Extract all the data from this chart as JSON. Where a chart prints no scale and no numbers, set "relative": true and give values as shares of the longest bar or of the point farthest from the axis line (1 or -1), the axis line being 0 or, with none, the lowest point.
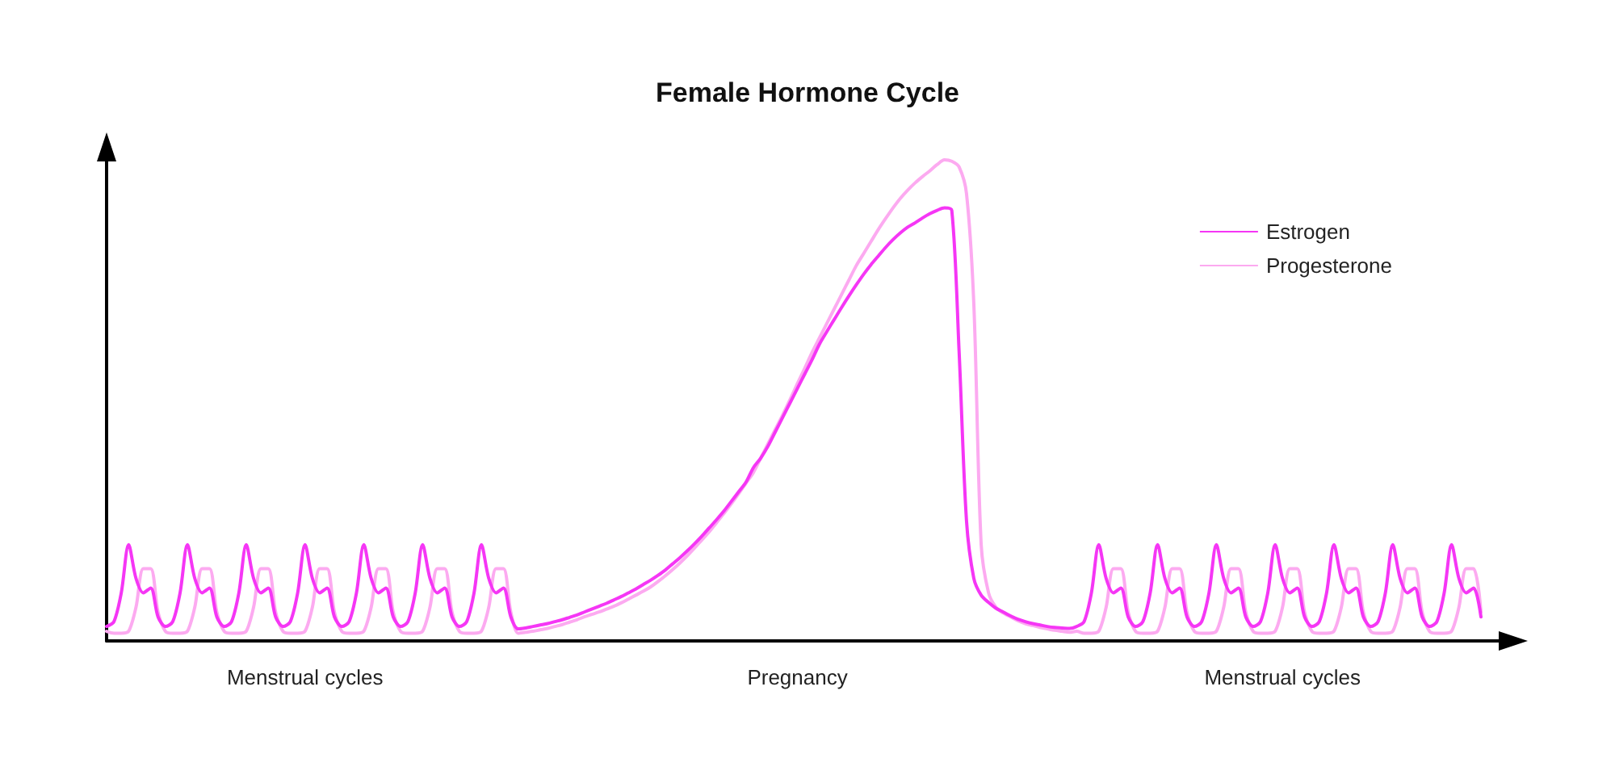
{
  "chart_data": {
    "type": "line",
    "title": "Female Hormone Cycle",
    "relative": true,
    "legend": "top right",
    "grid": false,
    "marker": "none",
    "line_style": "solid",
    "categories": [
      null,
      null,
      null,
      null,
      null,
      null,
      null,
      null,
      null,
      null,
      null,
      null,
      null,
      null,
      null,
      null,
      null,
      null,
      null,
      null,
      null,
      null,
      null,
      null,
      null,
      null,
      null,
      "Menstrual cycles",
      null,
      null,
      null,
      null,
      null,
      null,
      null,
      null,
      null,
      null,
      null,
      null,
      null,
      null,
      null,
      null,
      null,
      null,
      null,
      null,
      null,
      null,
      null,
      null,
      null,
      null,
      null,
      null,
      null,
      null,
      null,
      null,
      null,
      null,
      null,
      null,
      null,
      null,
      null,
      null,
      null,
      null,
      null,
      null,
      null,
      null,
      null,
      null,
      null,
      null,
      null,
      null,
      null,
      null,
      null,
      null,
      null,
      null,
      null,
      null,
      null,
      null,
      null,
      null,
      null,
      null,
      "Pregnancy",
      null,
      null,
      null,
      null,
      null,
      null,
      null,
      null,
      null,
      null,
      null,
      null,
      null,
      null,
      null,
      null,
      null,
      null,
      null,
      null,
      null,
      null,
      null,
      null,
      null,
      null,
      null,
      null,
      null,
      null,
      null,
      null,
      null,
      null,
      null,
      null,
      null,
      null,
      null,
      null,
      null,
      null,
      null,
      null,
      null,
      null,
      null,
      null,
      null,
      null,
      null,
      null,
      null,
      null,
      null,
      null,
      null,
      null,
      null,
      null,
      null,
      null,
      null,
      null,
      null,
      "Menstrual cycles",
      null,
      null,
      null,
      null,
      null,
      null,
      null,
      null,
      null,
      null,
      null,
      null,
      null,
      null,
      null,
      null,
      null,
      null,
      null,
      null,
      null,
      null,
      null,
      null,
      null,
      null,
      null
    ],
    "series": [
      {
        "name": "Estrogen",
        "color": "#f536f5",
        "values": [
          0.03,
          0.04,
          0.1,
          0.2,
          0.13,
          0.1,
          0.11,
          0.05,
          0.03,
          0.04,
          0.1,
          0.2,
          0.13,
          0.1,
          0.11,
          0.05,
          0.03,
          0.04,
          0.1,
          0.2,
          0.13,
          0.1,
          0.11,
          0.05,
          0.03,
          0.04,
          0.1,
          0.2,
          0.13,
          0.1,
          0.11,
          0.05,
          0.03,
          0.04,
          0.1,
          0.2,
          0.13,
          0.1,
          0.11,
          0.05,
          0.03,
          0.04,
          0.1,
          0.2,
          0.13,
          0.1,
          0.11,
          0.05,
          0.03,
          0.04,
          0.1,
          0.2,
          0.13,
          0.1,
          0.11,
          0.05,
          0.025,
          0.027,
          0.03,
          0.033,
          0.036,
          0.04,
          0.044,
          0.049,
          0.054,
          0.06,
          0.066,
          0.072,
          0.078,
          0.085,
          0.092,
          0.1,
          0.108,
          0.117,
          0.126,
          0.136,
          0.147,
          0.16,
          0.173,
          0.187,
          0.202,
          0.218,
          0.235,
          0.252,
          0.27,
          0.29,
          0.31,
          0.33,
          0.36,
          0.38,
          0.405,
          0.435,
          0.465,
          0.495,
          0.525,
          0.555,
          0.585,
          0.617,
          0.643,
          0.668,
          0.693,
          0.717,
          0.74,
          0.762,
          0.782,
          0.8,
          0.818,
          0.834,
          0.848,
          0.86,
          0.869,
          0.879,
          0.888,
          0.895,
          0.9,
          0.895,
          0.6,
          0.25,
          0.13,
          0.095,
          0.08,
          0.068,
          0.06,
          0.052,
          0.045,
          0.04,
          0.036,
          0.033,
          0.03,
          0.028,
          0.027,
          0.026,
          0.03,
          0.04,
          0.1,
          0.2,
          0.13,
          0.1,
          0.11,
          0.05,
          0.03,
          0.04,
          0.1,
          0.2,
          0.13,
          0.1,
          0.11,
          0.05,
          0.03,
          0.04,
          0.1,
          0.2,
          0.13,
          0.1,
          0.11,
          0.05,
          0.03,
          0.04,
          0.1,
          0.2,
          0.13,
          0.1,
          0.11,
          0.05,
          0.03,
          0.04,
          0.1,
          0.2,
          0.13,
          0.1,
          0.11,
          0.05,
          0.03,
          0.04,
          0.1,
          0.2,
          0.13,
          0.1,
          0.11,
          0.05,
          0.03,
          0.04,
          0.1,
          0.2,
          0.13,
          0.1,
          0.11,
          0.05
        ]
      },
      {
        "name": "Progesterone",
        "color": "#fcaaf0",
        "values": [
          0.02,
          0.016,
          0.016,
          0.02,
          0.07,
          0.15,
          0.15,
          0.06,
          0.02,
          0.016,
          0.016,
          0.02,
          0.07,
          0.15,
          0.15,
          0.06,
          0.02,
          0.016,
          0.016,
          0.02,
          0.07,
          0.15,
          0.15,
          0.06,
          0.02,
          0.016,
          0.016,
          0.02,
          0.07,
          0.15,
          0.15,
          0.06,
          0.02,
          0.016,
          0.016,
          0.02,
          0.07,
          0.15,
          0.15,
          0.06,
          0.02,
          0.016,
          0.016,
          0.02,
          0.07,
          0.15,
          0.15,
          0.06,
          0.02,
          0.016,
          0.016,
          0.02,
          0.07,
          0.15,
          0.15,
          0.06,
          0.016,
          0.018,
          0.02,
          0.023,
          0.026,
          0.03,
          0.034,
          0.039,
          0.044,
          0.05,
          0.055,
          0.06,
          0.066,
          0.072,
          0.079,
          0.087,
          0.095,
          0.103,
          0.112,
          0.123,
          0.135,
          0.148,
          0.162,
          0.177,
          0.193,
          0.21,
          0.227,
          0.246,
          0.265,
          0.285,
          0.306,
          0.328,
          0.35,
          0.38,
          0.41,
          0.44,
          0.47,
          0.502,
          0.535,
          0.567,
          0.6,
          0.63,
          0.66,
          0.69,
          0.72,
          0.75,
          0.78,
          0.805,
          0.83,
          0.855,
          0.878,
          0.9,
          0.92,
          0.937,
          0.952,
          0.965,
          0.977,
          0.99,
          1,
          0.997,
          0.985,
          0.93,
          0.7,
          0.2,
          0.1,
          0.07,
          0.058,
          0.05,
          0.042,
          0.036,
          0.032,
          0.028,
          0.025,
          0.022,
          0.02,
          0.018,
          0.02,
          0.016,
          0.016,
          0.02,
          0.07,
          0.15,
          0.15,
          0.06,
          0.02,
          0.016,
          0.016,
          0.02,
          0.07,
          0.15,
          0.15,
          0.06,
          0.02,
          0.016,
          0.016,
          0.02,
          0.07,
          0.15,
          0.15,
          0.06,
          0.02,
          0.016,
          0.016,
          0.02,
          0.07,
          0.15,
          0.15,
          0.06,
          0.02,
          0.016,
          0.016,
          0.02,
          0.07,
          0.15,
          0.15,
          0.06,
          0.02,
          0.016,
          0.016,
          0.02,
          0.07,
          0.15,
          0.15,
          0.06,
          0.02,
          0.016,
          0.016,
          0.02,
          0.07,
          0.15,
          0.15,
          0.06
        ]
      }
    ]
  }
}
